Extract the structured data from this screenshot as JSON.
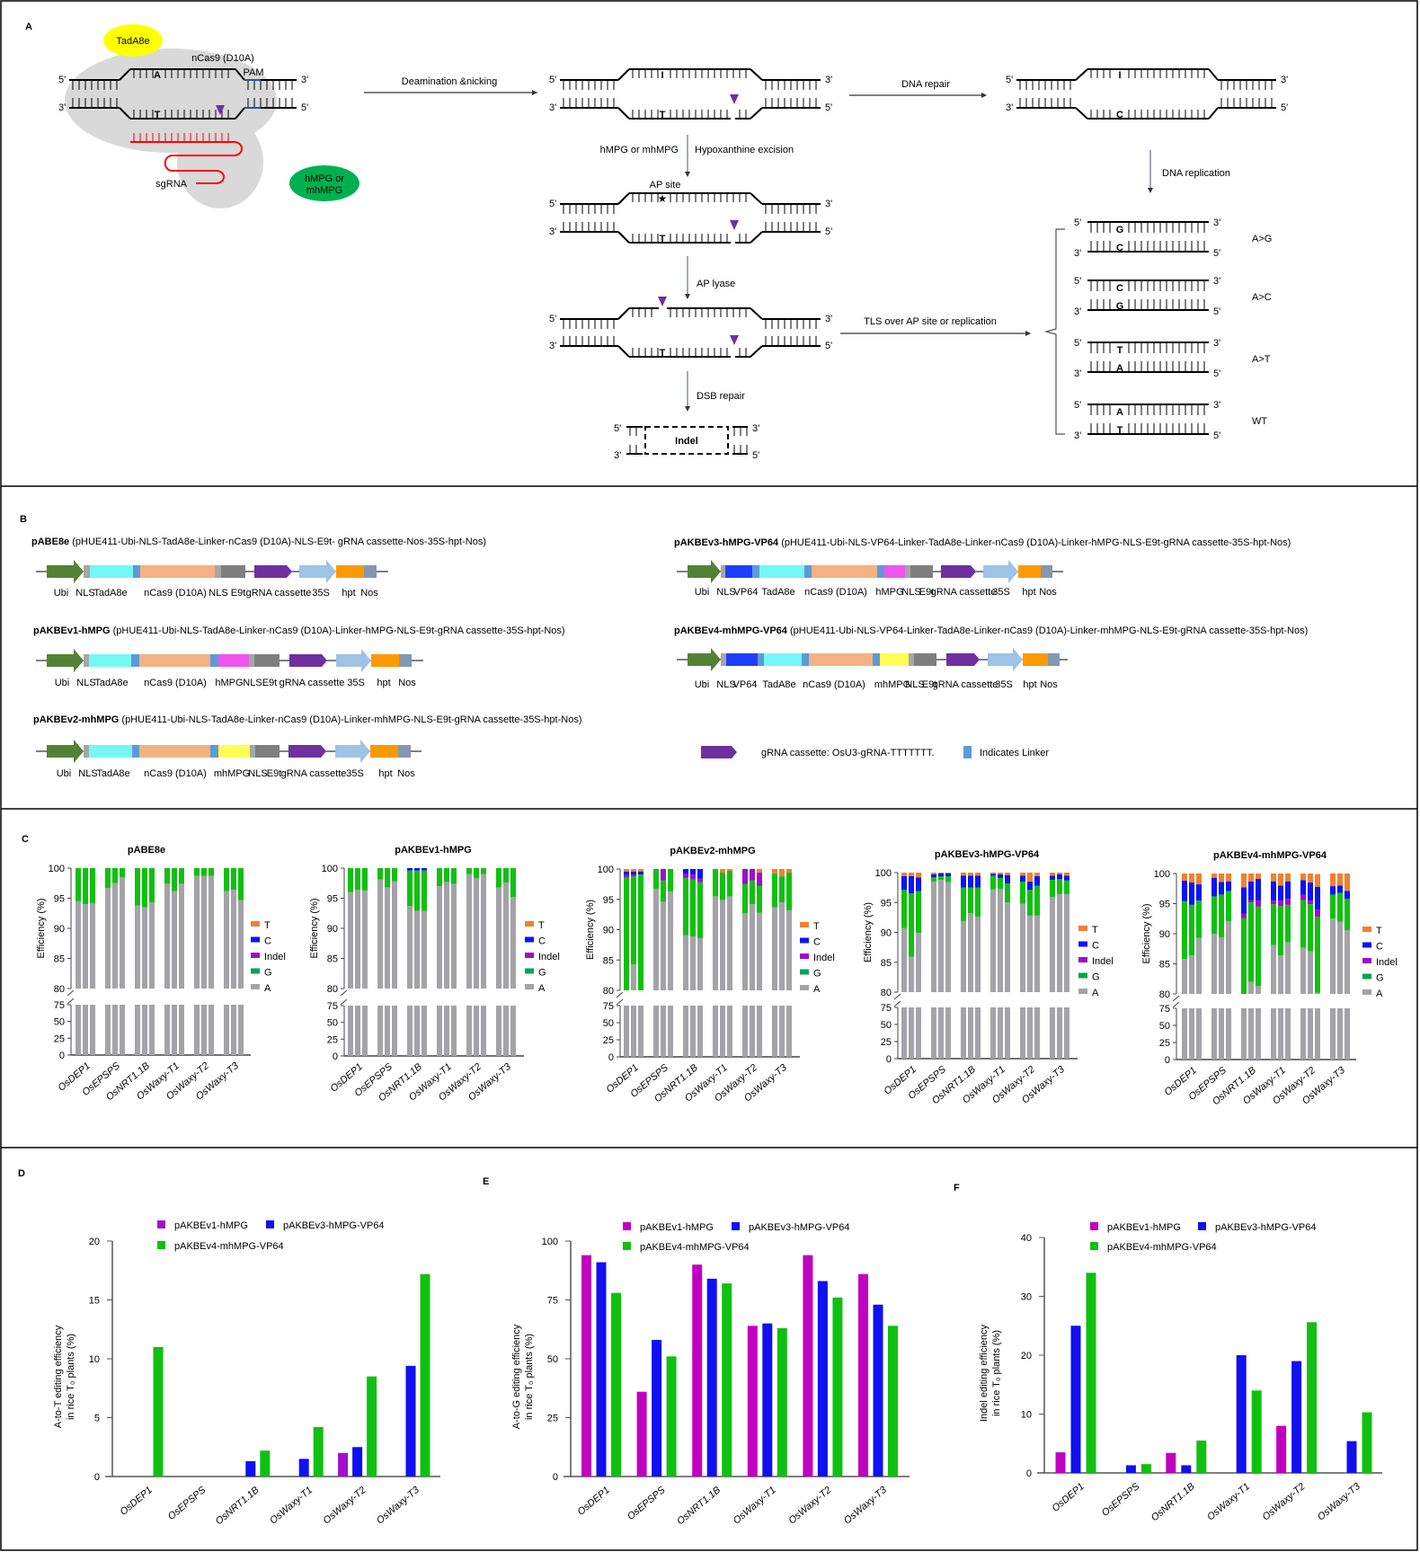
{
  "panel_labels": {
    "A": "A",
    "B": "B",
    "C": "C",
    "D": "D",
    "E": "E",
    "F": "F"
  },
  "panel_a": {
    "ends": {
      "five": "5'",
      "three": "3'"
    },
    "tada8e": "TadA8e",
    "ncas9": "nCas9 (D10A)",
    "pam": "PAM",
    "sgrna": "sgRNA",
    "mpg": [
      "hMPG or",
      "mhMPG"
    ],
    "steps": {
      "deamination": "Deamination &nicking",
      "dna_repair": "DNA repair",
      "enzyme": "hMPG or mhMPG",
      "excision": "Hypoxanthine excision",
      "ap_site": "AP site",
      "ap_lyase": "AP lyase",
      "dsb_repair": "DSB repair",
      "indel": "Indel",
      "dna_replication": "DNA replication",
      "tls": "TLS over AP site or replication"
    },
    "duplexes": {
      "initial": {
        "top": "A",
        "bottom": "T"
      },
      "deaminated": {
        "top": "I",
        "bottom": "T"
      },
      "repaired": {
        "top": "I",
        "bottom": "C"
      },
      "ap_site": {
        "top": "",
        "bottom": "T"
      },
      "lyase": {
        "top": "",
        "bottom": "T"
      }
    },
    "outcomes": [
      {
        "label": "A>G",
        "top": "G",
        "bottom": "C",
        "top_color": "#00b050"
      },
      {
        "label": "A>C",
        "top": "C",
        "bottom": "G",
        "top_color": "#2f5597"
      },
      {
        "label": "A>T",
        "top": "T",
        "bottom": "A",
        "top_color": "#ff0000"
      },
      {
        "label": "WT",
        "top": "A",
        "bottom": "T",
        "top_color": "#000000"
      }
    ],
    "colors": {
      "inosine": "#ff0000",
      "edited": "#00b050",
      "nick": "#7030a0",
      "tada8e": "#ffff00",
      "mpg": "#00b050",
      "cas9": "#d9d9d9",
      "sgrna": "#ff0000",
      "pam": "#2f5597"
    }
  },
  "panel_b": {
    "part_colors": {
      "promoter": "#548235",
      "nls": "#a6a6a6",
      "tada8e": "#75f7f7",
      "linker": "#5b9bd5",
      "ncas9": "#f4b183",
      "e9t": "#7f7f7f",
      "grna": "#7030a0",
      "p35s": "#9dc3e6",
      "hpt": "#ff9900",
      "nos": "#8497b0",
      "vp64": "#1f3fff",
      "hmpg": "#ee55ee",
      "mhmpg": "#ffff55"
    },
    "constructs": [
      {
        "name": "pABE8e",
        "desc": "(pHUE411-Ubi-NLS-TadA8e-Linker-nCas9 (D10A)-NLS-E9t- gRNA cassette-Nos-35S-hpt-Nos)",
        "labels": [
          "Ubi",
          "NLS",
          "TadA8e",
          "nCas9 (D10A)",
          "NLS",
          "E9t",
          "gRNA cassette",
          "35S",
          "hpt",
          "Nos"
        ]
      },
      {
        "name": "pAKBEv1-hMPG",
        "desc": "(pHUE411-Ubi-NLS-TadA8e-Linker-nCas9 (D10A)-Linker-hMPG-NLS-E9t-gRNA cassette-35S-hpt-Nos)",
        "labels": [
          "Ubi",
          "NLS",
          "TadA8e",
          "nCas9 (D10A)",
          "hMPG",
          "NLS",
          "E9t",
          "gRNA cassette",
          "35S",
          "hpt",
          "Nos"
        ]
      },
      {
        "name": "pAKBEv2-mhMPG",
        "desc": "(pHUE411-Ubi-NLS-TadA8e-Linker-nCas9 (D10A)-Linker-mhMPG-NLS-E9t-gRNA cassette-35S-hpt-Nos)",
        "labels": [
          "Ubi",
          "NLS",
          "TadA8e",
          "nCas9 (D10A)",
          "mhMPG",
          "NLS",
          "E9t",
          "gRNA cassette",
          "35S",
          "hpt",
          "Nos"
        ]
      },
      {
        "name": "pAKBEv3-hMPG-VP64",
        "desc": "(pHUE411-Ubi-NLS-VP64-Linker-TadA8e-Linker-nCas9 (D10A)-Linker-hMPG-NLS-E9t-gRNA cassette-35S-hpt-Nos)",
        "labels": [
          "Ubi",
          "NLS",
          "VP64",
          "TadA8e",
          "nCas9 (D10A)",
          "hMPG",
          "NLS",
          "E9t",
          "gRNA cassette",
          "35S",
          "hpt",
          "Nos"
        ]
      },
      {
        "name": "pAKBEv4-mhMPG-VP64",
        "desc": "(pHUE411-Ubi-NLS-VP64-Linker-TadA8e-Linker-nCas9 (D10A)-Linker-mhMPG-NLS-E9t-gRNA cassette-35S-hpt-Nos)",
        "labels": [
          "Ubi",
          "NLS",
          "VP64",
          "TadA8e",
          "nCas9 (D10A)",
          "mhMPG",
          "NLS",
          "E9t",
          "gRNA cassette",
          "35S",
          "hpt",
          "Nos"
        ]
      }
    ],
    "legend": {
      "grna": "gRNA cassette: OsU3-gRNA-TTTTTTT.",
      "linker": "Indicates Linker"
    }
  },
  "chart_data": [
    {
      "type": "bar",
      "stacked": true,
      "title": "pABE8e",
      "ylabel": "Efficiency (%)",
      "categories": [
        "OsDEP1",
        "OsEPSPS",
        "OsNRT1.1B",
        "OsWaxy-T1",
        "OsWaxy-T2",
        "OsWaxy-T3"
      ],
      "yticks_upper": [
        80,
        85,
        90,
        95,
        100
      ],
      "yticks_lower": [
        0,
        25,
        50,
        75
      ],
      "legend": [
        "T",
        "C",
        "Indel",
        "G",
        "A"
      ],
      "stacks": {
        "A": [
          94.5,
          94,
          94.2,
          96.7,
          97.5,
          98.5,
          93.8,
          93.5,
          94.3,
          97.4,
          96.2,
          97.4,
          98.7,
          98.7,
          98.7,
          96.2,
          96.4,
          94.7
        ],
        "G": [
          5.5,
          6,
          5.8,
          3.3,
          2.5,
          1.5,
          6.2,
          6.5,
          5.7,
          2.6,
          3.8,
          2.6,
          1.3,
          1.3,
          1.3,
          3.8,
          3.6,
          5.3
        ],
        "Indel": [
          0,
          0,
          0,
          0,
          0,
          0,
          0,
          0,
          0,
          0,
          0,
          0,
          0,
          0,
          0,
          0,
          0,
          0
        ],
        "C": [
          0,
          0,
          0,
          0,
          0,
          0,
          0,
          0,
          0,
          0,
          0,
          0,
          0,
          0,
          0,
          0,
          0,
          0
        ],
        "T": [
          0,
          0,
          0,
          0,
          0,
          0,
          0,
          0,
          0,
          0,
          0,
          0,
          0,
          0,
          0,
          0,
          0,
          0
        ]
      }
    },
    {
      "type": "bar",
      "stacked": true,
      "title": "pAKBEv1-hMPG",
      "ylabel": "Efficiency (%)",
      "categories": [
        "OsDEP1",
        "OsEPSPS",
        "OsNRT1.1B",
        "OsWaxy-T1",
        "OsWaxy-T2",
        "OsWaxy-T3"
      ],
      "yticks_upper": [
        80,
        85,
        90,
        95,
        100
      ],
      "yticks_lower": [
        0,
        25,
        50,
        75
      ],
      "legend": [
        "T",
        "C",
        "Indel",
        "G",
        "A"
      ],
      "stacks": {
        "A": [
          96,
          96.4,
          96.3,
          98.1,
          96.8,
          97.8,
          93.7,
          92.9,
          92.9,
          97,
          97.7,
          97.4,
          99,
          98.3,
          99,
          96.8,
          97.6,
          95.2
        ],
        "G": [
          4,
          3.6,
          3.7,
          1.9,
          3.2,
          2.2,
          5.9,
          6.7,
          6.7,
          3,
          2.3,
          2.6,
          1,
          1.7,
          1,
          3.2,
          2.4,
          4.8
        ],
        "Indel": [
          0,
          0,
          0,
          0,
          0,
          0,
          0,
          0,
          0,
          0,
          0,
          0,
          0,
          0,
          0,
          0,
          0,
          0
        ],
        "C": [
          0,
          0,
          0,
          0,
          0,
          0,
          0.4,
          0.4,
          0.4,
          0,
          0,
          0,
          0,
          0,
          0,
          0,
          0,
          0
        ],
        "T": [
          0,
          0,
          0,
          0,
          0,
          0,
          0,
          0,
          0,
          0,
          0,
          0,
          0,
          0,
          0,
          0,
          0,
          0
        ]
      }
    },
    {
      "type": "bar",
      "stacked": true,
      "title": "pAKBEv2-mhMPG",
      "ylabel": "Efficiency (%)",
      "categories": [
        "OsDEP1",
        "OsEPSPS",
        "OsNRT1.1B",
        "OsWaxy-T1",
        "OsWaxy-T2",
        "OsWaxy-T3"
      ],
      "yticks_upper": [
        80,
        85,
        90,
        95,
        100
      ],
      "yticks_lower": [
        0,
        25,
        50,
        75
      ],
      "legend": [
        "T",
        "C",
        "Indel",
        "G",
        "A"
      ],
      "stacks": {
        "A": [
          79.9,
          84.3,
          79.9,
          96.7,
          94.6,
          96.3,
          89.1,
          88.9,
          88.6,
          95.5,
          94.9,
          95.5,
          92.7,
          94.2,
          92.8,
          93.7,
          94.5,
          93.2
        ],
        "G": [
          18.6,
          14.5,
          19.1,
          3.3,
          3.5,
          3.7,
          9.4,
          9.4,
          9.2,
          4.5,
          4.5,
          4.2,
          4.8,
          3.9,
          4.4,
          5.6,
          4.3,
          6.2
        ],
        "Indel": [
          0.4,
          0.3,
          0,
          0,
          1.9,
          0,
          0.7,
          0.8,
          0.6,
          0,
          0,
          0,
          2.5,
          1.9,
          2.2,
          0,
          0,
          0
        ],
        "C": [
          0.6,
          0.5,
          0.5,
          0,
          0,
          0,
          0.8,
          0.9,
          1.6,
          0,
          0,
          0,
          0,
          0,
          0,
          0,
          0,
          0
        ],
        "T": [
          0.5,
          0.4,
          0.5,
          0,
          0,
          0,
          0,
          0,
          0,
          0,
          0.6,
          0.3,
          0,
          0,
          0.6,
          0.7,
          1.2,
          0.6
        ]
      }
    },
    {
      "type": "bar",
      "stacked": true,
      "title": "pAKBEv3-hMPG-VP64",
      "ylabel": "Efficiency (%)",
      "categories": [
        "OsDEP1",
        "OsEPSPS",
        "OsNRT1.1B",
        "OsWaxy-T1",
        "OsWaxy-T2",
        "OsWaxy-T3"
      ],
      "yticks_upper": [
        80,
        85,
        90,
        95,
        100
      ],
      "yticks_lower": [
        0,
        25,
        50,
        75
      ],
      "legend": [
        "T",
        "C",
        "Indel",
        "G",
        "A"
      ],
      "stacks": {
        "A": [
          90.7,
          85.9,
          89.9,
          98.5,
          98.8,
          98.4,
          91.9,
          93.2,
          92.6,
          97.2,
          97.3,
          95,
          94.8,
          92.8,
          92.8,
          95.9,
          96.4,
          96.4
        ],
        "G": [
          6.4,
          10.6,
          7,
          0.7,
          0.6,
          1,
          5.6,
          4.3,
          4.9,
          2.3,
          1.8,
          3.2,
          3.7,
          4.3,
          5,
          2.9,
          2.5,
          2.3
        ],
        "Indel": [
          0,
          0,
          0,
          0,
          0,
          0,
          0,
          0,
          0,
          0,
          0,
          0,
          0,
          0,
          0,
          0,
          0,
          0
        ],
        "C": [
          2.3,
          2.9,
          2.3,
          0.5,
          0.5,
          0.5,
          2,
          2,
          2,
          0.3,
          0.6,
          1.4,
          1,
          1.4,
          1.6,
          0.7,
          0.8,
          0.8
        ],
        "T": [
          0.6,
          0.6,
          0.8,
          0.3,
          0.1,
          0.1,
          0.5,
          0.5,
          0.5,
          0.2,
          0.3,
          0.4,
          0.5,
          1.5,
          0.6,
          0.5,
          0.3,
          0.5
        ]
      }
    },
    {
      "type": "bar",
      "stacked": true,
      "title": "pAKBEv4-mhMPG-VP64",
      "ylabel": "Efficiency (%)",
      "categories": [
        "OsDEP1",
        "OsEPSPS",
        "OsNRT1.1B",
        "OsWaxy-T1",
        "OsWaxy-T2",
        "OsWaxy-T3"
      ],
      "yticks_upper": [
        80,
        85,
        90,
        95,
        100
      ],
      "yticks_lower": [
        0,
        25,
        50,
        75
      ],
      "legend": [
        "T",
        "C",
        "Indel",
        "G",
        "A"
      ],
      "stacks": {
        "A": [
          85.8,
          86.4,
          89.3,
          90,
          89.4,
          92.1,
          79.8,
          82,
          81.3,
          88.1,
          86.4,
          88.6,
          87.7,
          87.1,
          80.2,
          92.5,
          92,
          90.6
        ],
        "G": [
          9.6,
          8.4,
          6.2,
          6.2,
          7.1,
          5,
          12.6,
          13.2,
          13.2,
          6.8,
          8.2,
          6.2,
          7.9,
          7.8,
          12.6,
          4,
          4.8,
          5.2
        ],
        "Indel": [
          0,
          0,
          0,
          0,
          0,
          0,
          0.7,
          0.4,
          1,
          0.6,
          0.9,
          1,
          0.9,
          0.6,
          1.2,
          0,
          0,
          0
        ],
        "C": [
          3.4,
          3.7,
          2.7,
          3.1,
          2.1,
          1.6,
          4.4,
          3.1,
          3.6,
          3.2,
          2.5,
          2.9,
          2.4,
          3,
          3.8,
          1.4,
          1.2,
          1.3
        ],
        "T": [
          1.2,
          1.5,
          1.8,
          0.7,
          1.4,
          1.3,
          2.5,
          1.3,
          0.9,
          1.3,
          2,
          1.3,
          1.1,
          1.5,
          2.1,
          2.1,
          2,
          2.9
        ]
      }
    },
    {
      "type": "bar",
      "ylabel": [
        "A-to-T editing efficiency",
        "in rice T₀ plants (%)"
      ],
      "ylim": [
        0,
        20
      ],
      "yticks": [
        0,
        5,
        10,
        15,
        20
      ],
      "categories": [
        "OsDEP1",
        "OsEPSPS",
        "OsNRT1.1B",
        "OsWaxy-T1",
        "OsWaxy-T2",
        "OsWaxy-T3"
      ],
      "series": [
        {
          "name": "pAKBEv1-hMPG",
          "color": "#a010d0",
          "values": [
            0,
            0,
            0,
            0,
            2.0,
            0
          ]
        },
        {
          "name": "pAKBEv3-hMPG-VP64",
          "color": "#1010f0",
          "values": [
            0,
            0,
            1.3,
            1.5,
            2.5,
            9.4
          ]
        },
        {
          "name": "pAKBEv4-mhMPG-VP64",
          "color": "#10c010",
          "values": [
            11,
            0,
            2.2,
            4.2,
            8.5,
            17.2
          ]
        }
      ]
    },
    {
      "type": "bar",
      "ylabel": [
        "A-to-G editing efficiency",
        "in rice T₀ plants (%)"
      ],
      "ylim": [
        0,
        100
      ],
      "yticks": [
        0,
        25,
        50,
        75,
        100
      ],
      "categories": [
        "OsDEP1",
        "OsEPSPS",
        "OsNRT1.1B",
        "OsWaxy-T1",
        "OsWaxy-T2",
        "OsWaxy-T3"
      ],
      "series": [
        {
          "name": "pAKBEv1-hMPG",
          "color": "#c000c0",
          "values": [
            94,
            36,
            90,
            64,
            94,
            86
          ]
        },
        {
          "name": "pAKBEv3-hMPG-VP64",
          "color": "#1010f0",
          "values": [
            91,
            58,
            84,
            65,
            83,
            73
          ]
        },
        {
          "name": "pAKBEv4-mhMPG-VP64",
          "color": "#10c010",
          "values": [
            78,
            51,
            82,
            63,
            76,
            64
          ]
        }
      ]
    },
    {
      "type": "bar",
      "ylabel": [
        "Indel editing efficiency",
        "in rice T₀ plants (%)"
      ],
      "ylim": [
        0,
        40
      ],
      "yticks": [
        0,
        10,
        20,
        30,
        40
      ],
      "categories": [
        "OsDEP1",
        "OsEPSPS",
        "OsNRT1.1B",
        "OsWaxy-T1",
        "OsWaxy-T2",
        "OsWaxy-T3"
      ],
      "series": [
        {
          "name": "pAKBEv1-hMPG",
          "color": "#c000c0",
          "values": [
            3.5,
            0,
            3.4,
            0,
            8,
            0
          ]
        },
        {
          "name": "pAKBEv3-hMPG-VP64",
          "color": "#1010f0",
          "values": [
            25,
            1.3,
            1.3,
            20,
            19,
            5.4
          ]
        },
        {
          "name": "pAKBEv4-mhMPG-VP64",
          "color": "#10c010",
          "values": [
            34,
            1.5,
            5.5,
            14,
            25.6,
            10.3
          ]
        }
      ]
    }
  ],
  "stack_colors": {
    "A": "#a3a3a8",
    "G": "#10c010",
    "Indel": "#9b10c8",
    "C": "#0a14f5",
    "T": "#f08030"
  },
  "legend_colors": {
    "A": "#a3a3a8",
    "G": "#00a651",
    "Indel": "#9b10c8",
    "C": "#0a14f5",
    "T": "#f08030"
  }
}
